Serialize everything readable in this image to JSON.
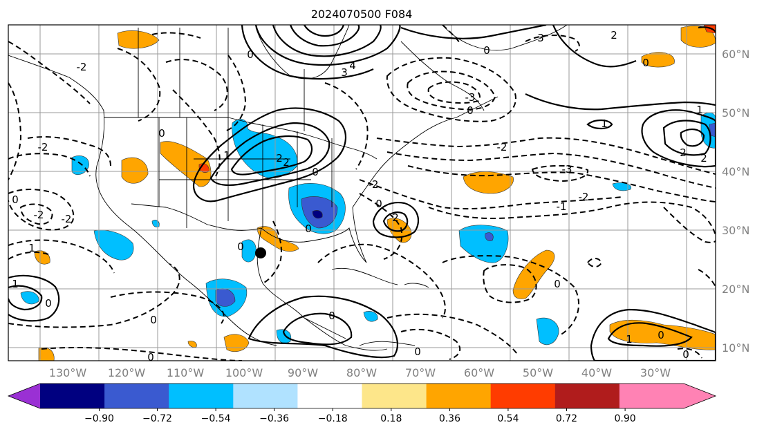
{
  "title": "2024070500 F084",
  "map": {
    "lon_labels": [
      "130°W",
      "120°W",
      "110°W",
      "100°W",
      "90°W",
      "80°W",
      "70°W",
      "60°W",
      "50°W",
      "40°W",
      "30°W"
    ],
    "lat_labels": [
      "60°N",
      "50°N",
      "40°N",
      "30°N",
      "20°N",
      "10°N"
    ],
    "contour_labels": [
      "0",
      "1",
      "2",
      "3",
      "4",
      "-1",
      "-2",
      "-3"
    ]
  },
  "colorbar": {
    "ticks": [
      "−0.90",
      "−0.72",
      "−0.54",
      "−0.36",
      "−0.18",
      "0.18",
      "0.36",
      "0.54",
      "0.72",
      "0.90"
    ],
    "colors": [
      "#9a30d4",
      "#000080",
      "#3a5ad0",
      "#00bfff",
      "#b0e2ff",
      "#ffffff",
      "#fde68a",
      "#ffa500",
      "#ff3c00",
      "#b01c1c",
      "#ff82b4"
    ]
  },
  "fill_colors": {
    "light_blue": "#00bfff",
    "mid_blue": "#3a5ad0",
    "dark_blue": "#000080",
    "orange": "#ffa500",
    "red_orange": "#ff3c00"
  }
}
